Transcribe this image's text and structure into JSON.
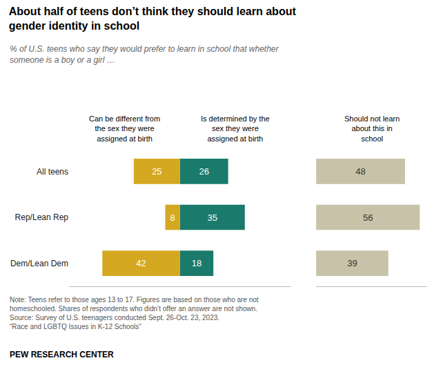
{
  "chart_data": {
    "type": "bar",
    "orientation": "horizontal",
    "title": "About half of teens don’t think they should learn about\ngender identity in school",
    "subtitle": "% of U.S. teens who say they would prefer to learn in school that whether\nsomeone is a boy or a girl …",
    "note": "Note: Teens refer to those ages 13 to 17. Figures are based on those who are not\nhomeschooled. Shares of respondents who didn’t offer an answer are not shown.\nSource: Survey of U.S. teenagers conducted Sept. 26-Oct. 23, 2023.\n“Race and LGBTQ Issues in K-12 Schools”",
    "source": "PEW RESEARCH CENTER",
    "categories": [
      "All teens",
      "Rep/Lean Rep",
      "Dem/Lean Dem"
    ],
    "series": [
      {
        "name": "Can be different from\nthe sex they were\nassigned at birth",
        "color": "#D4A820",
        "values": [
          25,
          8,
          42
        ]
      },
      {
        "name": "Is determined by the\nsex they were\nassigned at birth",
        "color": "#1A7A6B",
        "values": [
          26,
          35,
          18
        ]
      },
      {
        "name": "Should not learn\nabout this in\nschool",
        "color": "#C8C3A8",
        "values": [
          48,
          56,
          39
        ]
      }
    ],
    "xlim": [
      0,
      60
    ],
    "data_labels": true,
    "tick_labels": "y",
    "grid": false
  }
}
